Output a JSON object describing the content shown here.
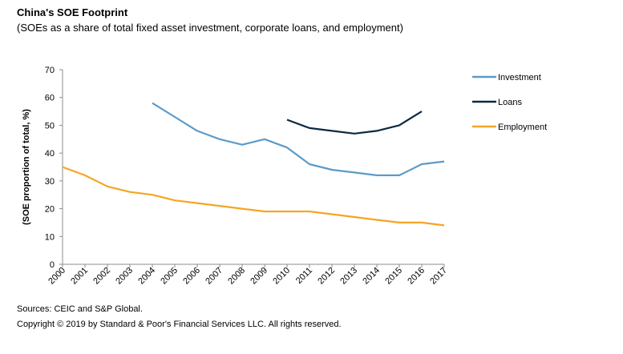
{
  "header": {
    "title": "China's SOE Footprint",
    "subtitle": "(SOEs as a share of total fixed asset investment, corporate loans, and employment)"
  },
  "footer": {
    "sources": "Sources: CEIC and S&P Global.",
    "copyright": "Copyright © 2019 by Standard & Poor's Financial Services LLC. All rights reserved."
  },
  "chart_data": {
    "type": "line",
    "title": "China's SOE Footprint",
    "subtitle": "(SOEs as a share of total fixed asset investment, corporate loans, and employment)",
    "xlabel": "",
    "ylabel": "(SOE proportion of total, %)",
    "ylim": [
      0,
      70
    ],
    "yticks": [
      0,
      10,
      20,
      30,
      40,
      50,
      60,
      70
    ],
    "grid": false,
    "legend": "right",
    "x": [
      "2000",
      "2001",
      "2002",
      "2003",
      "2004",
      "2005",
      "2006",
      "2007",
      "2008",
      "2009",
      "2010",
      "2011",
      "2012",
      "2013",
      "2014",
      "2015",
      "2016",
      "2017"
    ],
    "series": [
      {
        "name": "Investment",
        "color": "#5B9BC8",
        "values": [
          null,
          null,
          null,
          null,
          58,
          53,
          48,
          45,
          43,
          45,
          42,
          36,
          34,
          33,
          32,
          32,
          36,
          37
        ]
      },
      {
        "name": "Loans",
        "color": "#0E2841",
        "values": [
          null,
          null,
          null,
          null,
          null,
          null,
          null,
          null,
          null,
          null,
          52,
          49,
          48,
          47,
          48,
          50,
          55,
          null
        ]
      },
      {
        "name": "Employment",
        "color": "#F5A623",
        "values": [
          35,
          32,
          28,
          26,
          25,
          23,
          22,
          21,
          20,
          19,
          19,
          19,
          18,
          17,
          16,
          15,
          15,
          14
        ]
      }
    ]
  }
}
